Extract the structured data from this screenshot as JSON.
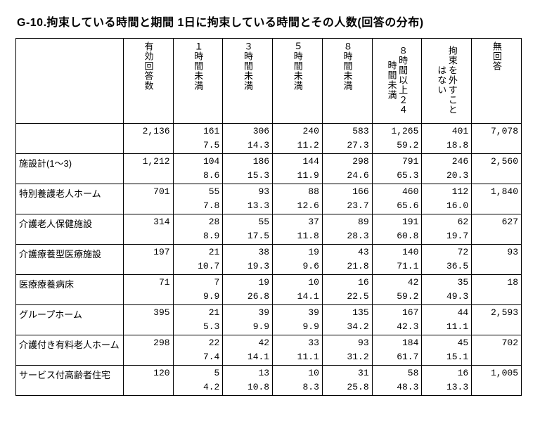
{
  "title": "G-10.拘束している時間と期間 1日に拘束している時間とその人数(回答の分布)",
  "table": {
    "type": "table",
    "background_color": "#ffffff",
    "border_color": "#000000",
    "columns": [
      "有効回答数",
      "１時間未満",
      "３時間未満",
      "５時間未満",
      "８時間未満",
      "８時間以上２４時間未満",
      "拘束を外すことはない",
      "無回答"
    ],
    "row_labels": [
      "",
      "施設計(1～3)",
      "特別養護老人ホーム",
      "介護老人保健施設",
      "介護療養型医療施設",
      "医療療養病床",
      "グループホーム",
      "介護付き有料老人ホーム",
      "サービス付高齢者住宅"
    ],
    "counts": [
      [
        "2,136",
        "161",
        "306",
        "240",
        "583",
        "1,265",
        "401",
        "7,078"
      ],
      [
        "1,212",
        "104",
        "186",
        "144",
        "298",
        "791",
        "246",
        "2,560"
      ],
      [
        "701",
        "55",
        "93",
        "88",
        "166",
        "460",
        "112",
        "1,840"
      ],
      [
        "314",
        "28",
        "55",
        "37",
        "89",
        "191",
        "62",
        "627"
      ],
      [
        "197",
        "21",
        "38",
        "19",
        "43",
        "140",
        "72",
        "93"
      ],
      [
        "71",
        "7",
        "19",
        "10",
        "16",
        "42",
        "35",
        "18"
      ],
      [
        "395",
        "21",
        "39",
        "39",
        "135",
        "167",
        "44",
        "2,593"
      ],
      [
        "298",
        "22",
        "42",
        "33",
        "93",
        "184",
        "45",
        "702"
      ],
      [
        "120",
        "5",
        "13",
        "10",
        "31",
        "58",
        "16",
        "1,005"
      ]
    ],
    "percents": [
      [
        "",
        "7.5",
        "14.3",
        "11.2",
        "27.3",
        "59.2",
        "18.8",
        ""
      ],
      [
        "",
        "8.6",
        "15.3",
        "11.9",
        "24.6",
        "65.3",
        "20.3",
        ""
      ],
      [
        "",
        "7.8",
        "13.3",
        "12.6",
        "23.7",
        "65.6",
        "16.0",
        ""
      ],
      [
        "",
        "8.9",
        "17.5",
        "11.8",
        "28.3",
        "60.8",
        "19.7",
        ""
      ],
      [
        "",
        "10.7",
        "19.3",
        "9.6",
        "21.8",
        "71.1",
        "36.5",
        ""
      ],
      [
        "",
        "9.9",
        "26.8",
        "14.1",
        "22.5",
        "59.2",
        "49.3",
        ""
      ],
      [
        "",
        "5.3",
        "9.9",
        "9.9",
        "34.2",
        "42.3",
        "11.1",
        ""
      ],
      [
        "",
        "7.4",
        "14.1",
        "11.1",
        "31.2",
        "61.7",
        "15.1",
        ""
      ],
      [
        "",
        "4.2",
        "10.8",
        "8.3",
        "25.8",
        "48.3",
        "13.3",
        ""
      ]
    ]
  }
}
